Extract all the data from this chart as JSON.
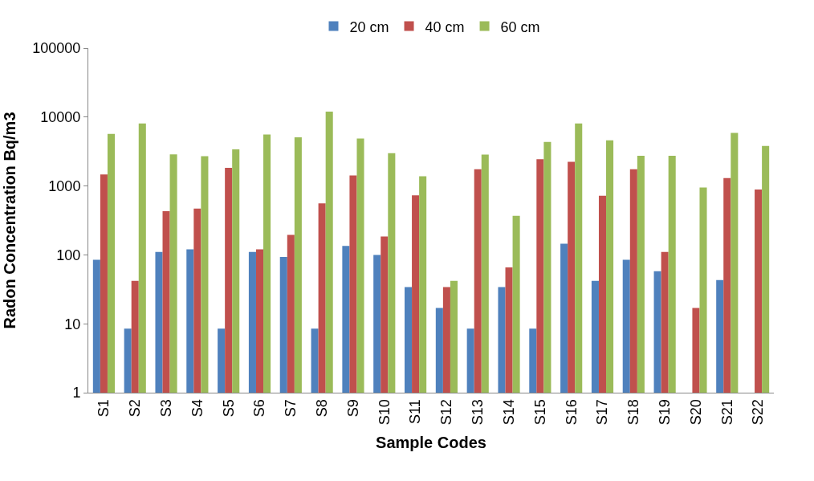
{
  "chart_data": {
    "type": "bar",
    "xlabel": "Sample Codes",
    "ylabel": "Radon Concentration Bq/m3",
    "categories": [
      "S1",
      "S2",
      "S3",
      "S4",
      "S5",
      "S6",
      "S7",
      "S8",
      "S9",
      "S10",
      "S11",
      "S12",
      "S13",
      "S14",
      "S15",
      "S16",
      "S17",
      "S18",
      "S19",
      "S20",
      "S21",
      "S22"
    ],
    "series": [
      {
        "name": "20 cm",
        "color": "#4f81bd",
        "values": [
          85,
          8.5,
          110,
          120,
          8.5,
          110,
          93,
          8.5,
          135,
          100,
          34,
          17,
          8.5,
          34,
          8.5,
          145,
          42,
          85,
          58,
          null,
          43,
          null
        ]
      },
      {
        "name": "40 cm",
        "color": "#c0504d",
        "values": [
          1470,
          42,
          430,
          470,
          1830,
          120,
          195,
          560,
          1420,
          185,
          730,
          34,
          1750,
          66,
          2450,
          2250,
          720,
          1750,
          110,
          17,
          1300,
          890
        ]
      },
      {
        "name": "60 cm",
        "color": "#9bbb59",
        "values": [
          5700,
          8100,
          2880,
          2700,
          3400,
          5600,
          5100,
          12000,
          4900,
          3000,
          1380,
          42,
          2850,
          370,
          4350,
          8100,
          4600,
          2750,
          2750,
          950,
          5900,
          3800
        ]
      }
    ],
    "log": true,
    "ylim": [
      1,
      100000
    ],
    "yticks": [
      1,
      10,
      100,
      1000,
      10000,
      100000
    ],
    "legend": "top"
  }
}
